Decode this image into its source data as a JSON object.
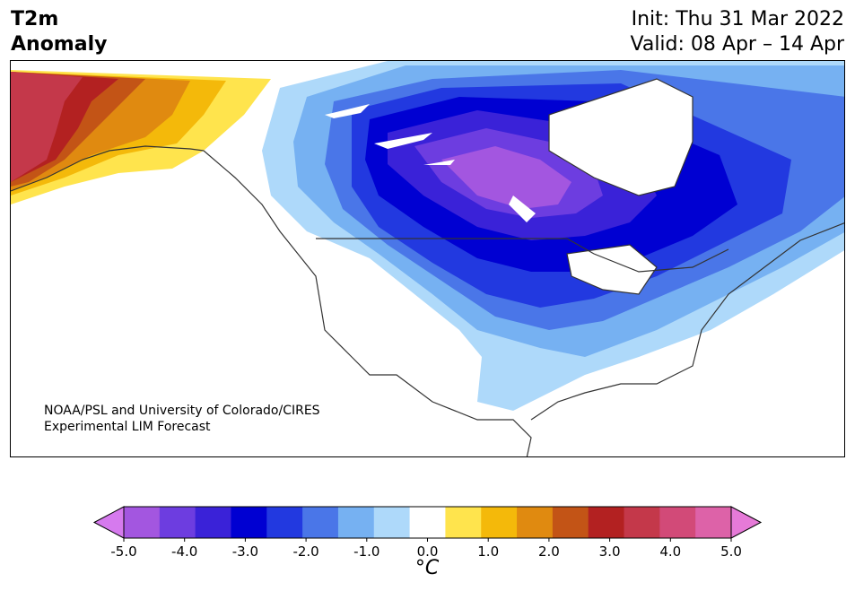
{
  "header": {
    "title_line1": "T2m",
    "title_line2": "Anomaly",
    "init": "Init: Thu 31 Mar 2022",
    "valid": "Valid: 08 Apr – 14 Apr"
  },
  "credit": {
    "line1": "NOAA/PSL and University of Colorado/CIRES",
    "line2": "Experimental LIM Forecast"
  },
  "colorbar": {
    "unit_label": "°C",
    "tick_labels": [
      "-5.0",
      "-4.0",
      "-3.0",
      "-2.0",
      "-1.0",
      "0.0",
      "1.0",
      "2.0",
      "3.0",
      "4.0",
      "5.0"
    ],
    "bins": [
      {
        "range": "< -5.0",
        "color": "#d67aee"
      },
      {
        "range": "-5.0 to -4.5",
        "color": "#a356e0"
      },
      {
        "range": "-4.5 to -4.0",
        "color": "#6d3de0"
      },
      {
        "range": "-4.0 to -3.5",
        "color": "#3a22d8"
      },
      {
        "range": "-3.5 to -3.0",
        "color": "#0000d2"
      },
      {
        "range": "-3.0 to -2.5",
        "color": "#2239e0"
      },
      {
        "range": "-2.5 to -2.0",
        "color": "#4a76e8"
      },
      {
        "range": "-2.0 to -1.5",
        "color": "#76b1f2"
      },
      {
        "range": "-1.5 to -0.5",
        "color": "#aed9fa"
      },
      {
        "range": "-0.5 to 0.5",
        "color": "#ffffff"
      },
      {
        "range": "0.5 to 1.0",
        "color": "#ffe44d"
      },
      {
        "range": "1.0 to 1.5",
        "color": "#f4b90a"
      },
      {
        "range": "1.5 to 2.0",
        "color": "#e08a10"
      },
      {
        "range": "2.0 to 2.5",
        "color": "#c35416"
      },
      {
        "range": "2.5 to 3.0",
        "color": "#b32121"
      },
      {
        "range": "3.0 to 3.5",
        "color": "#c4384a"
      },
      {
        "range": "3.5 to 4.0",
        "color": "#d24a78"
      },
      {
        "range": "4.0 to 4.5",
        "color": "#dd62a8"
      },
      {
        "range": "> 5.0",
        "color": "#e67ad8"
      }
    ]
  },
  "map": {
    "region": "North America",
    "features": [
      "cold anomaly centered over central Canada",
      "warm anomaly over Alaska"
    ]
  }
}
